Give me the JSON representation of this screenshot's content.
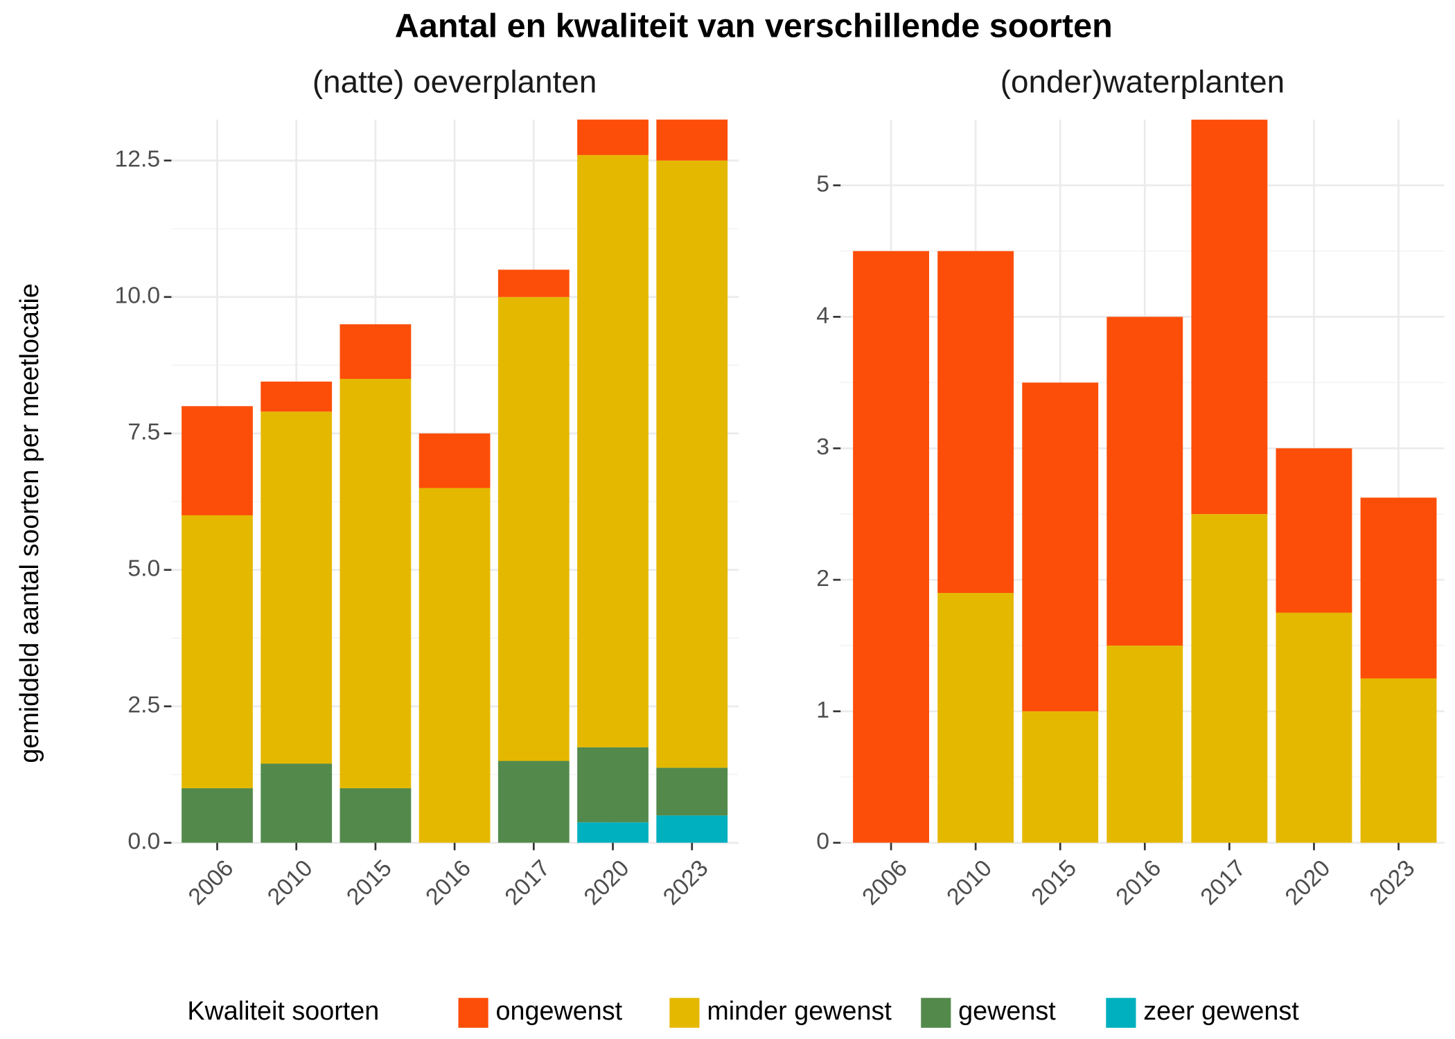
{
  "title": "Aantal en kwaliteit van verschillende soorten",
  "y_label": "gemiddeld aantal soorten per meetlocatie",
  "legend_title": "Kwaliteit soorten",
  "chart_data": [
    {
      "type": "bar",
      "stacked": true,
      "title": "(natte) oeverplanten",
      "categories": [
        "2006",
        "2010",
        "2015",
        "2016",
        "2017",
        "2020",
        "2023"
      ],
      "series": [
        {
          "name": "zeer gewenst",
          "color": "#00b0bf",
          "values": [
            0,
            0,
            0,
            0,
            0,
            0.375,
            0.5
          ]
        },
        {
          "name": "gewenst",
          "color": "#538a4c",
          "values": [
            1,
            1.45,
            1,
            0,
            1.5,
            1.375,
            0.875
          ]
        },
        {
          "name": "minder gewenst",
          "color": "#e5b800",
          "values": [
            5,
            6.45,
            7.5,
            6.5,
            8.5,
            10.85,
            11.125
          ]
        },
        {
          "name": "ongewenst",
          "color": "#fc4e08",
          "values": [
            2,
            0.55,
            1,
            1,
            0.5,
            1,
            1
          ]
        }
      ],
      "ylim": [
        0,
        13.25
      ],
      "yticks": [
        {
          "value": 0,
          "label": "0.0"
        },
        2.5,
        {
          "value": 5,
          "label": "5.0"
        },
        7.5,
        {
          "value": 10,
          "label": "10.0"
        },
        12.5
      ],
      "grid": true
    },
    {
      "type": "bar",
      "stacked": true,
      "title": "(onder)waterplanten",
      "categories": [
        "2006",
        "2010",
        "2015",
        "2016",
        "2017",
        "2020",
        "2023"
      ],
      "series": [
        {
          "name": "minder gewenst",
          "color": "#e5b800",
          "values": [
            0,
            1.9,
            1,
            1.5,
            2.5,
            1.75,
            1.25
          ]
        },
        {
          "name": "ongewenst",
          "color": "#fc4e08",
          "values": [
            4.5,
            2.6,
            2.5,
            2.5,
            3,
            1.25,
            1.375
          ]
        }
      ],
      "ylim": [
        0,
        5.5
      ],
      "yticks": [
        0,
        1,
        2,
        3,
        4,
        5
      ],
      "grid": true
    }
  ]
}
